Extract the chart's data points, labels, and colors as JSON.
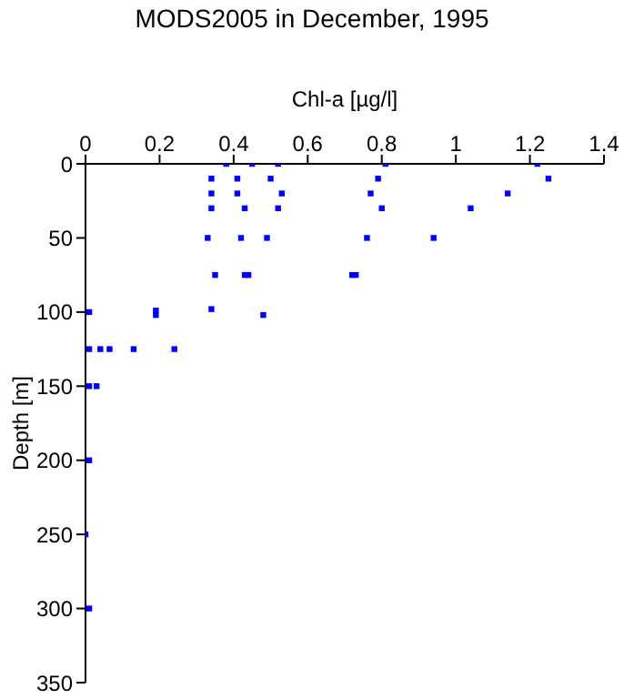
{
  "chart_data": {
    "type": "scatter",
    "title": "MODS2005 in December, 1995",
    "xlabel": "Chl-a [µg/l]",
    "ylabel": "Depth [m]",
    "x": [
      0.38,
      0.45,
      0.52,
      0.81,
      1.22,
      0.34,
      0.41,
      0.5,
      0.79,
      1.25,
      0.34,
      0.41,
      0.53,
      0.77,
      1.14,
      0.34,
      0.43,
      0.52,
      0.8,
      1.04,
      0.33,
      0.42,
      0.49,
      0.76,
      0.94,
      0.35,
      0.43,
      0.44,
      0.72,
      0.73,
      0.01,
      0.19,
      0.19,
      0.34,
      0.48,
      0.01,
      0.04,
      0.065,
      0.13,
      0.24,
      0.01,
      0.03,
      0.01,
      0,
      0.01
    ],
    "series": [
      {
        "color": "#0000ff",
        "values": [
          0,
          0,
          0,
          0,
          0,
          10,
          10,
          10,
          10,
          10,
          20,
          20,
          20,
          20,
          20,
          30,
          30,
          30,
          30,
          30,
          50,
          50,
          50,
          50,
          50,
          75,
          75,
          75,
          75,
          75,
          100,
          99,
          102,
          98,
          102,
          125,
          125,
          125,
          125,
          125,
          150,
          150,
          200,
          250,
          300
        ]
      }
    ],
    "xlim": [
      0,
      1.4
    ],
    "xticks": [
      0,
      0.2,
      0.4,
      0.6,
      0.8,
      1,
      1.2,
      1.4
    ],
    "ylim": [
      350,
      0
    ],
    "yticks": [
      0,
      50,
      100,
      150,
      200,
      250,
      300,
      350
    ],
    "grid": false,
    "legend": false,
    "marker": "square"
  }
}
